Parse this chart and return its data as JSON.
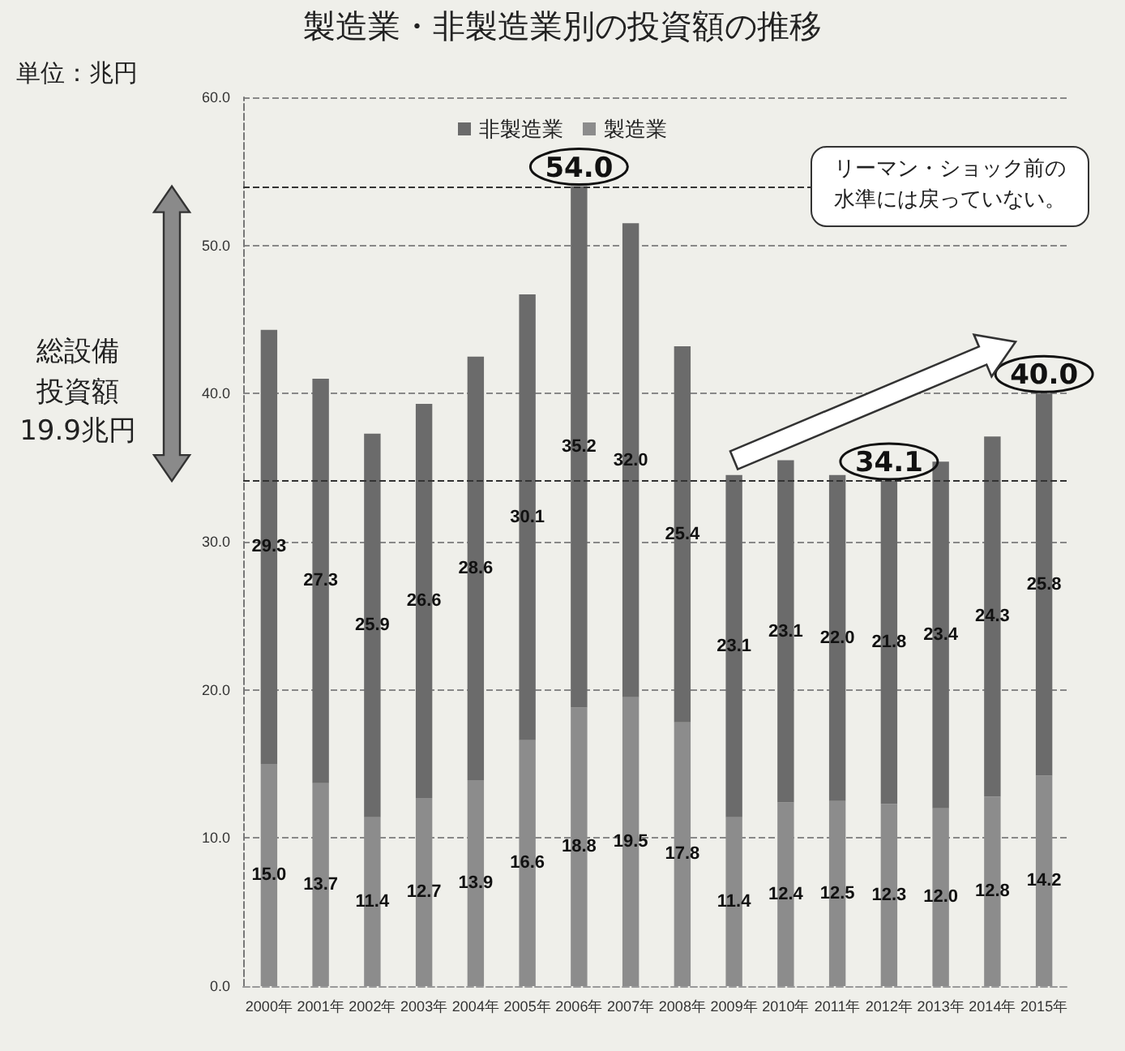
{
  "chart_data": {
    "type": "bar",
    "title": "製造業・非製造業別の投資額の推移",
    "stacked": true,
    "categories": [
      "2000年",
      "2001年",
      "2002年",
      "2003年",
      "2004年",
      "2005年",
      "2006年",
      "2007年",
      "2008年",
      "2009年",
      "2010年",
      "2011年",
      "2012年",
      "2013年",
      "2014年",
      "2015年"
    ],
    "series": [
      {
        "name": "製造業",
        "color": "#8c8c8c",
        "values": [
          15.0,
          13.7,
          11.4,
          12.7,
          13.9,
          16.6,
          18.8,
          19.5,
          17.8,
          11.4,
          12.4,
          12.5,
          12.3,
          12.0,
          12.8,
          14.2
        ],
        "value_labels": [
          "15.0",
          "13.7",
          "11.4",
          "12.7",
          "13.9",
          "16.6",
          "18.8",
          "19.5",
          "17.8",
          "11.4",
          "12.4",
          "12.5",
          "12.3",
          "12.0",
          "12.8",
          "14.2"
        ]
      },
      {
        "name": "非製造業",
        "color": "#6b6b6b",
        "values": [
          29.3,
          27.3,
          25.9,
          26.6,
          28.6,
          30.1,
          35.2,
          32.0,
          25.4,
          23.1,
          23.1,
          22.0,
          21.8,
          23.4,
          24.3,
          25.8
        ],
        "value_labels": [
          "29.3",
          "27.3",
          "25.9",
          "26.6",
          "28.6",
          "30.1",
          "35.2",
          "32.0",
          "25.4",
          "23.1",
          "23.1",
          "22.0",
          "21.8",
          "23.4",
          "24.3",
          "25.8"
        ]
      }
    ],
    "totals": [
      null,
      null,
      null,
      null,
      null,
      null,
      "54.0",
      null,
      null,
      null,
      null,
      null,
      "34.1",
      null,
      null,
      "40.0"
    ],
    "ylim": [
      0,
      60
    ],
    "yticks": [
      {
        "value": 0,
        "label": "0.0"
      },
      {
        "value": 10,
        "label": "10.0"
      },
      {
        "value": 20,
        "label": "20.0"
      },
      {
        "value": 30,
        "label": "30.0"
      },
      {
        "value": 40,
        "label": "40.0"
      },
      {
        "value": 50,
        "label": "50.0"
      },
      {
        "value": 60,
        "label": "60.0"
      }
    ],
    "grid": "y",
    "legend": "top",
    "ref_lines": [
      {
        "axis": "y",
        "value": 54.0,
        "line_style": "dashed"
      },
      {
        "axis": "y",
        "value": 34.1,
        "line_style": "dashed"
      }
    ],
    "annotations": [
      "単位：兆円",
      "総設備投資額19.9兆円",
      "リーマン・ショック前の水準には戻っていない。"
    ]
  }
}
